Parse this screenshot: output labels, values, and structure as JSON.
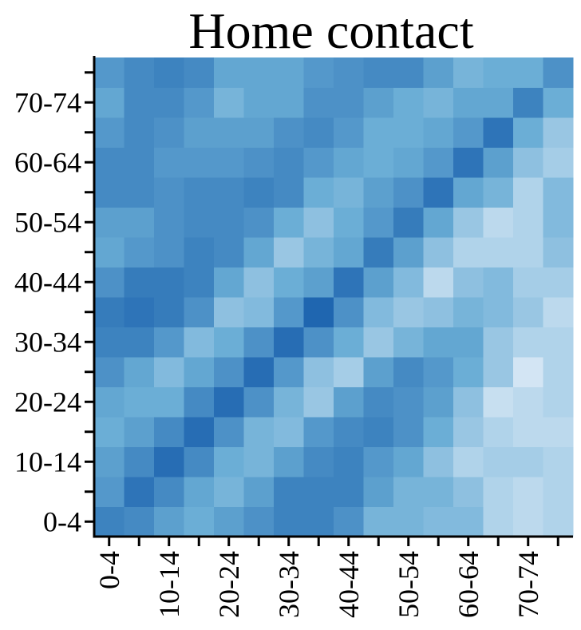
{
  "chart_data": {
    "type": "heatmap",
    "title": "Home contact",
    "categories": [
      "0-4",
      null,
      "10-14",
      null,
      "20-24",
      null,
      "30-34",
      null,
      "40-44",
      null,
      "50-54",
      null,
      "60-64",
      null,
      "70-74",
      null
    ],
    "colormap": [
      "#deebf7",
      "#6baed6",
      "#1f66b0"
    ],
    "values": [
      [
        0.8,
        0.75,
        0.6,
        0.5,
        0.6,
        0.7,
        0.8,
        0.8,
        0.7,
        0.45,
        0.45,
        0.4,
        0.4,
        0.2,
        0.15,
        0.2
      ],
      [
        0.65,
        0.9,
        0.75,
        0.55,
        0.45,
        0.6,
        0.8,
        0.8,
        0.8,
        0.6,
        0.45,
        0.45,
        0.35,
        0.2,
        0.15,
        0.2
      ],
      [
        0.6,
        0.75,
        0.95,
        0.75,
        0.5,
        0.45,
        0.6,
        0.75,
        0.8,
        0.65,
        0.55,
        0.35,
        0.2,
        0.25,
        0.25,
        0.2
      ],
      [
        0.5,
        0.6,
        0.75,
        0.95,
        0.7,
        0.45,
        0.4,
        0.65,
        0.75,
        0.8,
        0.7,
        0.5,
        0.3,
        0.2,
        0.15,
        0.15
      ],
      [
        0.55,
        0.5,
        0.5,
        0.75,
        0.95,
        0.7,
        0.45,
        0.3,
        0.6,
        0.75,
        0.7,
        0.6,
        0.35,
        0.1,
        0.15,
        0.2
      ],
      [
        0.7,
        0.55,
        0.4,
        0.55,
        0.7,
        0.95,
        0.65,
        0.35,
        0.25,
        0.6,
        0.75,
        0.65,
        0.5,
        0.3,
        0.05,
        0.2
      ],
      [
        0.8,
        0.8,
        0.65,
        0.4,
        0.5,
        0.7,
        0.95,
        0.7,
        0.5,
        0.3,
        0.45,
        0.55,
        0.55,
        0.3,
        0.2,
        0.2
      ],
      [
        0.85,
        0.9,
        0.85,
        0.7,
        0.35,
        0.4,
        0.65,
        1.0,
        0.7,
        0.4,
        0.3,
        0.35,
        0.45,
        0.4,
        0.3,
        0.15
      ],
      [
        0.7,
        0.85,
        0.85,
        0.8,
        0.55,
        0.35,
        0.5,
        0.6,
        0.9,
        0.6,
        0.4,
        0.15,
        0.35,
        0.4,
        0.25,
        0.25
      ],
      [
        0.55,
        0.65,
        0.7,
        0.8,
        0.75,
        0.55,
        0.3,
        0.45,
        0.55,
        0.85,
        0.6,
        0.35,
        0.2,
        0.2,
        0.2,
        0.35
      ],
      [
        0.6,
        0.6,
        0.7,
        0.75,
        0.75,
        0.7,
        0.5,
        0.35,
        0.5,
        0.65,
        0.85,
        0.55,
        0.3,
        0.15,
        0.2,
        0.4
      ],
      [
        0.75,
        0.75,
        0.7,
        0.75,
        0.75,
        0.8,
        0.75,
        0.5,
        0.45,
        0.6,
        0.7,
        0.9,
        0.55,
        0.45,
        0.2,
        0.4
      ],
      [
        0.75,
        0.75,
        0.65,
        0.65,
        0.65,
        0.7,
        0.75,
        0.65,
        0.55,
        0.5,
        0.55,
        0.65,
        0.9,
        0.6,
        0.35,
        0.25
      ],
      [
        0.65,
        0.75,
        0.7,
        0.6,
        0.6,
        0.6,
        0.7,
        0.75,
        0.65,
        0.5,
        0.5,
        0.55,
        0.65,
        0.9,
        0.5,
        0.3
      ],
      [
        0.55,
        0.75,
        0.75,
        0.65,
        0.45,
        0.55,
        0.55,
        0.7,
        0.7,
        0.6,
        0.5,
        0.45,
        0.55,
        0.55,
        0.8,
        0.5
      ],
      [
        0.65,
        0.75,
        0.8,
        0.75,
        0.55,
        0.55,
        0.55,
        0.65,
        0.7,
        0.75,
        0.75,
        0.6,
        0.45,
        0.5,
        0.5,
        0.7
      ]
    ]
  }
}
